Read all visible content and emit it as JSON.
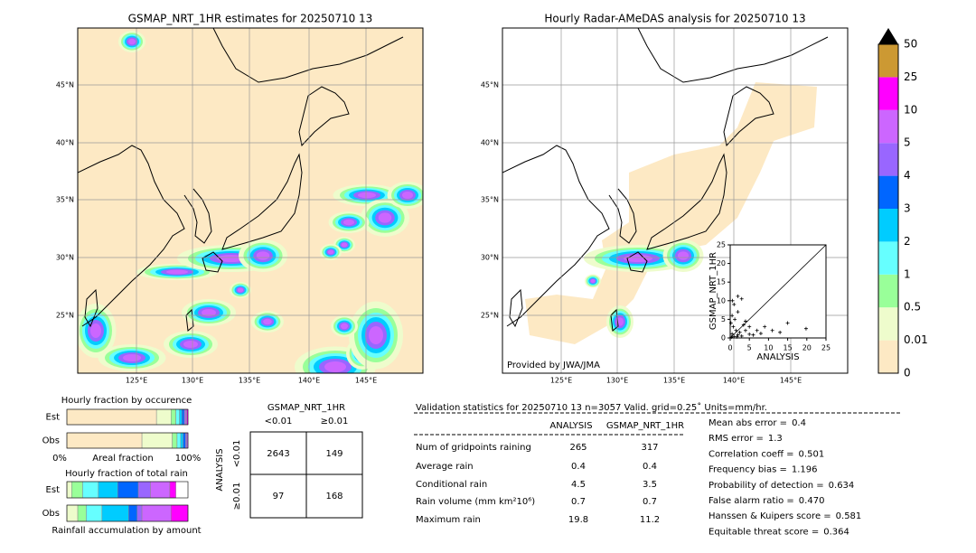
{
  "maps": [
    {
      "title": "GSMAP_NRT_1HR estimates for 20250710 13",
      "lat_labels": [
        "45°N",
        "40°N",
        "35°N",
        "30°N",
        "25°N"
      ],
      "lon_labels": [
        "125°E",
        "130°E",
        "135°E",
        "140°E",
        "145°E"
      ]
    },
    {
      "title": "Hourly Radar-AMeDAS analysis for 20250710 13",
      "lat_labels": [
        "45°N",
        "40°N",
        "35°N",
        "30°N",
        "25°N"
      ],
      "lon_labels": [
        "125°E",
        "130°E",
        "135°E",
        "140°E",
        "145°E"
      ],
      "credit": "Provided by JWA/JMA"
    }
  ],
  "colorbar": {
    "labels": [
      "0",
      "0.01",
      "0.5",
      "1",
      "2",
      "3",
      "4",
      "5",
      "10",
      "25",
      "50"
    ],
    "colors": [
      "#fde9c4",
      "#eefccc",
      "#99ff99",
      "#66ffff",
      "#00ccff",
      "#0066ff",
      "#9966ff",
      "#cc66ff",
      "#ff00ff",
      "#cc9933"
    ]
  },
  "scatter": {
    "type": "scatter",
    "xlabel": "ANALYSIS",
    "ylabel": "GSMAP_NRT_1HR",
    "xlim": [
      0,
      25
    ],
    "ylim": [
      0,
      25
    ],
    "xticks": [
      0,
      5,
      10,
      15,
      20,
      25
    ],
    "yticks": [
      0,
      5,
      10,
      15,
      20,
      25
    ],
    "points": [
      [
        0.3,
        0.2
      ],
      [
        0.5,
        1.1
      ],
      [
        1,
        0.4
      ],
      [
        1.5,
        2
      ],
      [
        2,
        0.8
      ],
      [
        0.8,
        3
      ],
      [
        2.5,
        1.5
      ],
      [
        3,
        0.5
      ],
      [
        1.2,
        5
      ],
      [
        4,
        2
      ],
      [
        0.5,
        6
      ],
      [
        5,
        1
      ],
      [
        3.5,
        3.5
      ],
      [
        6,
        0.8
      ],
      [
        2,
        7
      ],
      [
        7,
        2
      ],
      [
        1,
        9
      ],
      [
        8,
        1.2
      ],
      [
        4,
        4.5
      ],
      [
        9,
        3
      ],
      [
        0.6,
        10
      ],
      [
        11,
        2
      ],
      [
        13,
        1.5
      ],
      [
        15,
        4
      ],
      [
        19.8,
        2.5
      ],
      [
        2,
        11.2
      ],
      [
        3,
        10.5
      ],
      [
        5,
        3
      ],
      [
        0.2,
        4
      ],
      [
        1.8,
        0.3
      ]
    ]
  },
  "occurrence": {
    "title": "Hourly fraction by occurence",
    "axis": [
      "0%",
      "Areal fraction",
      "100%"
    ],
    "series": [
      {
        "name": "Est",
        "values": [
          0.74,
          0.12,
          0.04,
          0.03,
          0.02,
          0.02,
          0.01,
          0.01,
          0.01,
          0
        ]
      },
      {
        "name": "Obs",
        "values": [
          0.62,
          0.25,
          0.04,
          0.03,
          0.02,
          0.02,
          0.01,
          0.01,
          0,
          0
        ]
      }
    ]
  },
  "total_rain": {
    "title": "Hourly fraction of total rain",
    "footer": "Rainfall accumulation by amount",
    "series": [
      {
        "name": "Est",
        "values": [
          0,
          0.04,
          0.09,
          0.13,
          0.16,
          0.17,
          0.1,
          0.16,
          0.05,
          0
        ]
      },
      {
        "name": "Obs",
        "values": [
          0,
          0.09,
          0.07,
          0.13,
          0.22,
          0.07,
          0.04,
          0.24,
          0.14,
          0
        ]
      }
    ]
  },
  "contingency": {
    "title": "GSMAP_NRT_1HR",
    "col_labels": [
      "<0.01",
      "≥0.01"
    ],
    "side": "ANALYSIS",
    "row_labels": [
      "<0.01",
      "≥0.01"
    ],
    "cells": [
      [
        2643,
        149
      ],
      [
        97,
        168
      ]
    ]
  },
  "stats": {
    "title": "Validation statistics for 20250710 13  n=3057 Valid. grid=0.25˚ Units=mm/hr.",
    "columns": [
      "ANALYSIS",
      "GSMAP_NRT_1HR"
    ],
    "rows": [
      {
        "name": "Num of gridpoints raining",
        "values": [
          265,
          317
        ]
      },
      {
        "name": "Average rain",
        "values": [
          0.4,
          0.4
        ]
      },
      {
        "name": "Conditional rain",
        "values": [
          4.5,
          3.5
        ]
      },
      {
        "name": "Rain volume (mm km²10⁶)",
        "values": [
          0.7,
          0.7
        ]
      },
      {
        "name": "Maximum rain",
        "values": [
          19.8,
          11.2
        ]
      }
    ],
    "scores": [
      {
        "name": "Mean abs error =",
        "value": 0.4
      },
      {
        "name": "RMS error =",
        "value": 1.3
      },
      {
        "name": "Correlation coeff =",
        "value": 0.501
      },
      {
        "name": "Frequency bias =",
        "value": 1.196
      },
      {
        "name": "Probability of detection =",
        "value": 0.634
      },
      {
        "name": "False alarm ratio =",
        "value": 0.47,
        "value_label": "0.470"
      },
      {
        "name": "Hanssen & Kuipers score =",
        "value": 0.581
      },
      {
        "name": "Equitable threat score =",
        "value": 0.364
      }
    ]
  }
}
